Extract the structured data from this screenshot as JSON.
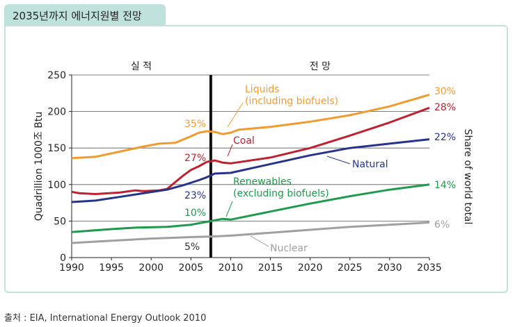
{
  "header": {
    "title": "2035년까지 에너지원별 전망"
  },
  "source_note": "출처 : EIA, International Energy Outlook 2010",
  "chart_data": {
    "type": "line",
    "title": "2035년까지 에너지원별 전망",
    "ylabel": "Quadrillion 1000조 Btu",
    "y2label": "Share of world total",
    "xlim": [
      1990,
      2035
    ],
    "ylim": [
      0,
      250
    ],
    "x_ticks": [
      1990,
      1995,
      2000,
      2005,
      2010,
      2015,
      2020,
      2025,
      2030,
      2035
    ],
    "y_ticks": [
      0,
      50,
      100,
      150,
      200,
      250
    ],
    "grid": "horizontal",
    "divider": {
      "x": 2007.5,
      "left_label": "실 적",
      "right_label": "전 망"
    },
    "series": [
      {
        "name": "Liquids\n(including biofuels)",
        "color": "#f39a2e",
        "points": [
          [
            1990,
            136
          ],
          [
            1993,
            138
          ],
          [
            1996,
            145
          ],
          [
            1999,
            152
          ],
          [
            2001,
            156
          ],
          [
            2003,
            157
          ],
          [
            2005,
            166
          ],
          [
            2006,
            171
          ],
          [
            2007,
            173
          ],
          [
            2008,
            172
          ],
          [
            2009,
            169
          ],
          [
            2010,
            171
          ],
          [
            2011,
            175
          ],
          [
            2015,
            179
          ],
          [
            2020,
            186
          ],
          [
            2025,
            195
          ],
          [
            2030,
            207
          ],
          [
            2035,
            223
          ]
        ],
        "share_2007": "35%",
        "share_2035": "30%"
      },
      {
        "name": "Coal",
        "color": "#c0202f",
        "points": [
          [
            1990,
            90
          ],
          [
            1991,
            88
          ],
          [
            1993,
            87
          ],
          [
            1996,
            89
          ],
          [
            1998,
            92
          ],
          [
            1999,
            91
          ],
          [
            2001,
            92
          ],
          [
            2002,
            94
          ],
          [
            2003,
            103
          ],
          [
            2004,
            112
          ],
          [
            2005,
            120
          ],
          [
            2006,
            125
          ],
          [
            2007,
            131
          ],
          [
            2008,
            133
          ],
          [
            2009,
            130
          ],
          [
            2010,
            129
          ],
          [
            2015,
            137
          ],
          [
            2020,
            150
          ],
          [
            2025,
            167
          ],
          [
            2030,
            185
          ],
          [
            2035,
            205
          ]
        ],
        "share_2007": "27%",
        "share_2035": "28%"
      },
      {
        "name": "Natural",
        "color": "#25338d",
        "points": [
          [
            1990,
            76
          ],
          [
            1993,
            78
          ],
          [
            1996,
            83
          ],
          [
            1999,
            88
          ],
          [
            2002,
            93
          ],
          [
            2004,
            99
          ],
          [
            2006,
            106
          ],
          [
            2007,
            110
          ],
          [
            2008,
            115
          ],
          [
            2010,
            116
          ],
          [
            2015,
            128
          ],
          [
            2020,
            140
          ],
          [
            2025,
            150
          ],
          [
            2030,
            156
          ],
          [
            2035,
            162
          ]
        ],
        "share_2007": "23%",
        "share_2035": "22%"
      },
      {
        "name": "Renewables\n(excluding biofuels)",
        "color": "#1d9a4b",
        "points": [
          [
            1990,
            35
          ],
          [
            1995,
            39
          ],
          [
            1998,
            41
          ],
          [
            2002,
            42
          ],
          [
            2005,
            45
          ],
          [
            2007,
            49
          ],
          [
            2008,
            51
          ],
          [
            2009,
            53
          ],
          [
            2010,
            52
          ],
          [
            2015,
            63
          ],
          [
            2020,
            74
          ],
          [
            2025,
            84
          ],
          [
            2030,
            93
          ],
          [
            2035,
            100
          ]
        ],
        "share_2007": "10%",
        "share_2035": "14%"
      },
      {
        "name": "Nuclear",
        "color": "#a0a0a0",
        "points": [
          [
            1990,
            20
          ],
          [
            1995,
            23
          ],
          [
            2000,
            26
          ],
          [
            2005,
            28
          ],
          [
            2008,
            29
          ],
          [
            2010,
            30
          ],
          [
            2015,
            34
          ],
          [
            2020,
            38
          ],
          [
            2025,
            42
          ],
          [
            2030,
            45
          ],
          [
            2035,
            48
          ]
        ],
        "share_2007": "5%",
        "share_2035": "6%"
      }
    ]
  }
}
